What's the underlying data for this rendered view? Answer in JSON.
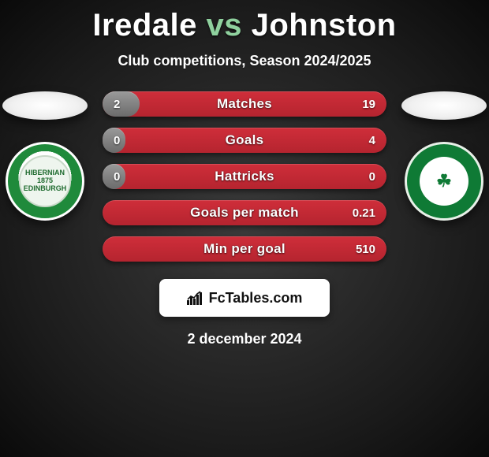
{
  "header": {
    "player1": "Iredale",
    "vs": "vs",
    "player2": "Johnston",
    "subtitle": "Club competitions, Season 2024/2025"
  },
  "players": {
    "left_club_text": "HIBERNIAN 1875 EDINBURGH",
    "right_club_glyph": "☘",
    "colors": {
      "left_badge_ring": "#1f8a3b",
      "right_badge_ring": "#0f7a35"
    }
  },
  "stats": {
    "bar_bg_gradient_top": "#cf2e3a",
    "bar_bg_gradient_bottom": "#b5242f",
    "fill_gradient_top": "#9a9a9a",
    "fill_gradient_bottom": "#6b6b6b",
    "rows": [
      {
        "label": "Matches",
        "left": "2",
        "right": "19",
        "fill_pct": 13
      },
      {
        "label": "Goals",
        "left": "0",
        "right": "4",
        "fill_pct": 8
      },
      {
        "label": "Hattricks",
        "left": "0",
        "right": "0",
        "fill_pct": 8
      },
      {
        "label": "Goals per match",
        "left": "",
        "right": "0.21",
        "fill_pct": 0
      },
      {
        "label": "Min per goal",
        "left": "",
        "right": "510",
        "fill_pct": 0
      }
    ]
  },
  "brand": {
    "text": "FcTables.com"
  },
  "date": "2 december 2024"
}
